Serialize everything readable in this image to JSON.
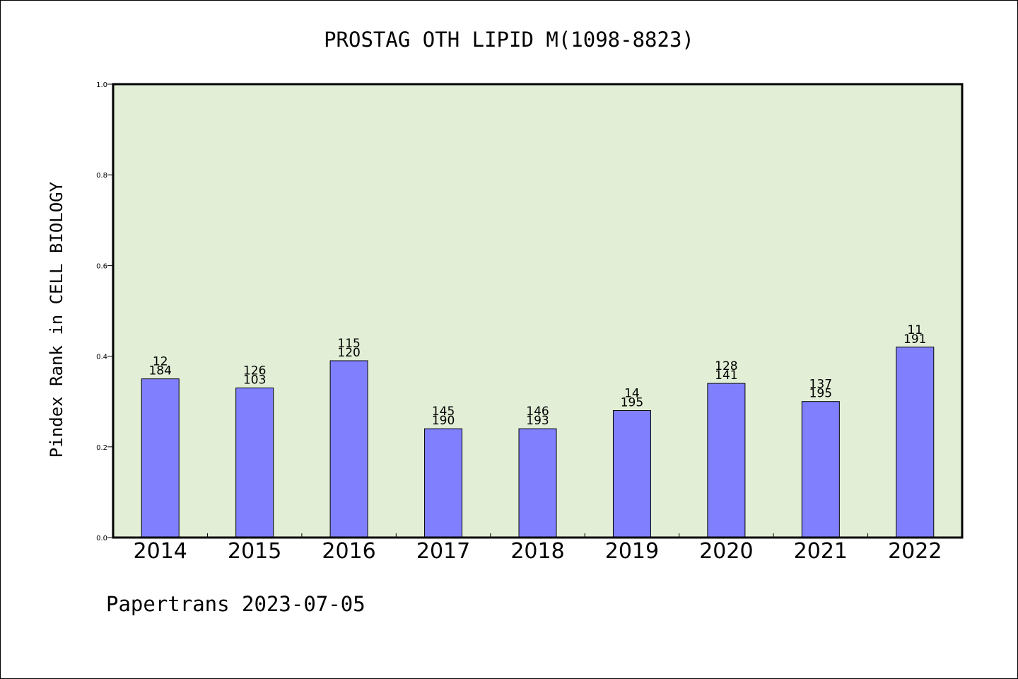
{
  "chart_data": {
    "type": "bar",
    "title": "PROSTAG OTH LIPID M(1098-8823)",
    "xlabel": "",
    "ylabel": "Pindex Rank in CELL BIOLOGY",
    "categories": [
      "2014",
      "2015",
      "2016",
      "2017",
      "2018",
      "2019",
      "2020",
      "2021",
      "2022"
    ],
    "values": [
      0.35,
      0.33,
      0.39,
      0.24,
      0.24,
      0.28,
      0.34,
      0.3,
      0.42
    ],
    "bar_labels_top": [
      "12",
      "126",
      "115",
      "145",
      "146",
      "14",
      "128",
      "137",
      "11"
    ],
    "bar_labels_bottom": [
      "184",
      "103",
      "120",
      "190",
      "193",
      "195",
      "141",
      "195",
      "191"
    ],
    "ylim": [
      0,
      1.0
    ],
    "yticks": [
      "0.0",
      "0.2",
      "0.4",
      "0.6",
      "0.8",
      "1.0"
    ],
    "grid": false,
    "legend": "none"
  },
  "footer": "Papertrans 2023-07-05",
  "colors": {
    "plot_background": "#e2efd6",
    "bar_fill": "#8080ff",
    "bar_stroke": "#000000",
    "axis": "#000000"
  }
}
